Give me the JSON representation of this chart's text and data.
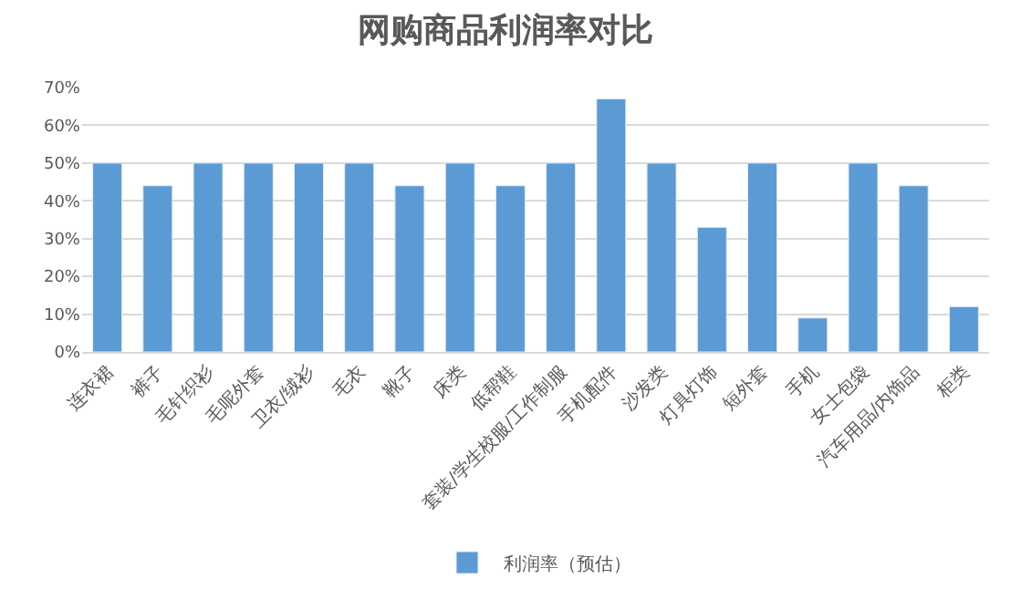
{
  "chart_data": {
    "type": "bar",
    "title": "网购商品利润率对比",
    "categories": [
      "连衣裙",
      "裤子",
      "毛针织衫",
      "毛呢外套",
      "卫衣/绒衫",
      "毛衣",
      "靴子",
      "床类",
      "低帮鞋",
      "套装/学生校服/工作制服",
      "手机配件",
      "沙发类",
      "灯具灯饰",
      "短外套",
      "手机",
      "女士包袋",
      "汽车用品/内饰品",
      "柜类"
    ],
    "series": [
      {
        "name": "利润率（预估）",
        "color": "#5b9bd5",
        "values": [
          50,
          44,
          50,
          50,
          50,
          50,
          44,
          50,
          44,
          50,
          67,
          50,
          33,
          50,
          9,
          50,
          44,
          12
        ]
      }
    ],
    "ylim": [
      0,
      70
    ],
    "yticks": [
      {
        "value": 0,
        "label": "0%"
      },
      {
        "value": 10,
        "label": "10%"
      },
      {
        "value": 20,
        "label": "20%"
      },
      {
        "value": 30,
        "label": "30%"
      },
      {
        "value": 40,
        "label": "40%"
      },
      {
        "value": 50,
        "label": "50%"
      },
      {
        "value": 60,
        "label": "60%"
      },
      {
        "value": 70,
        "label": "70%"
      }
    ],
    "grid": "y",
    "legend": "bottom"
  }
}
